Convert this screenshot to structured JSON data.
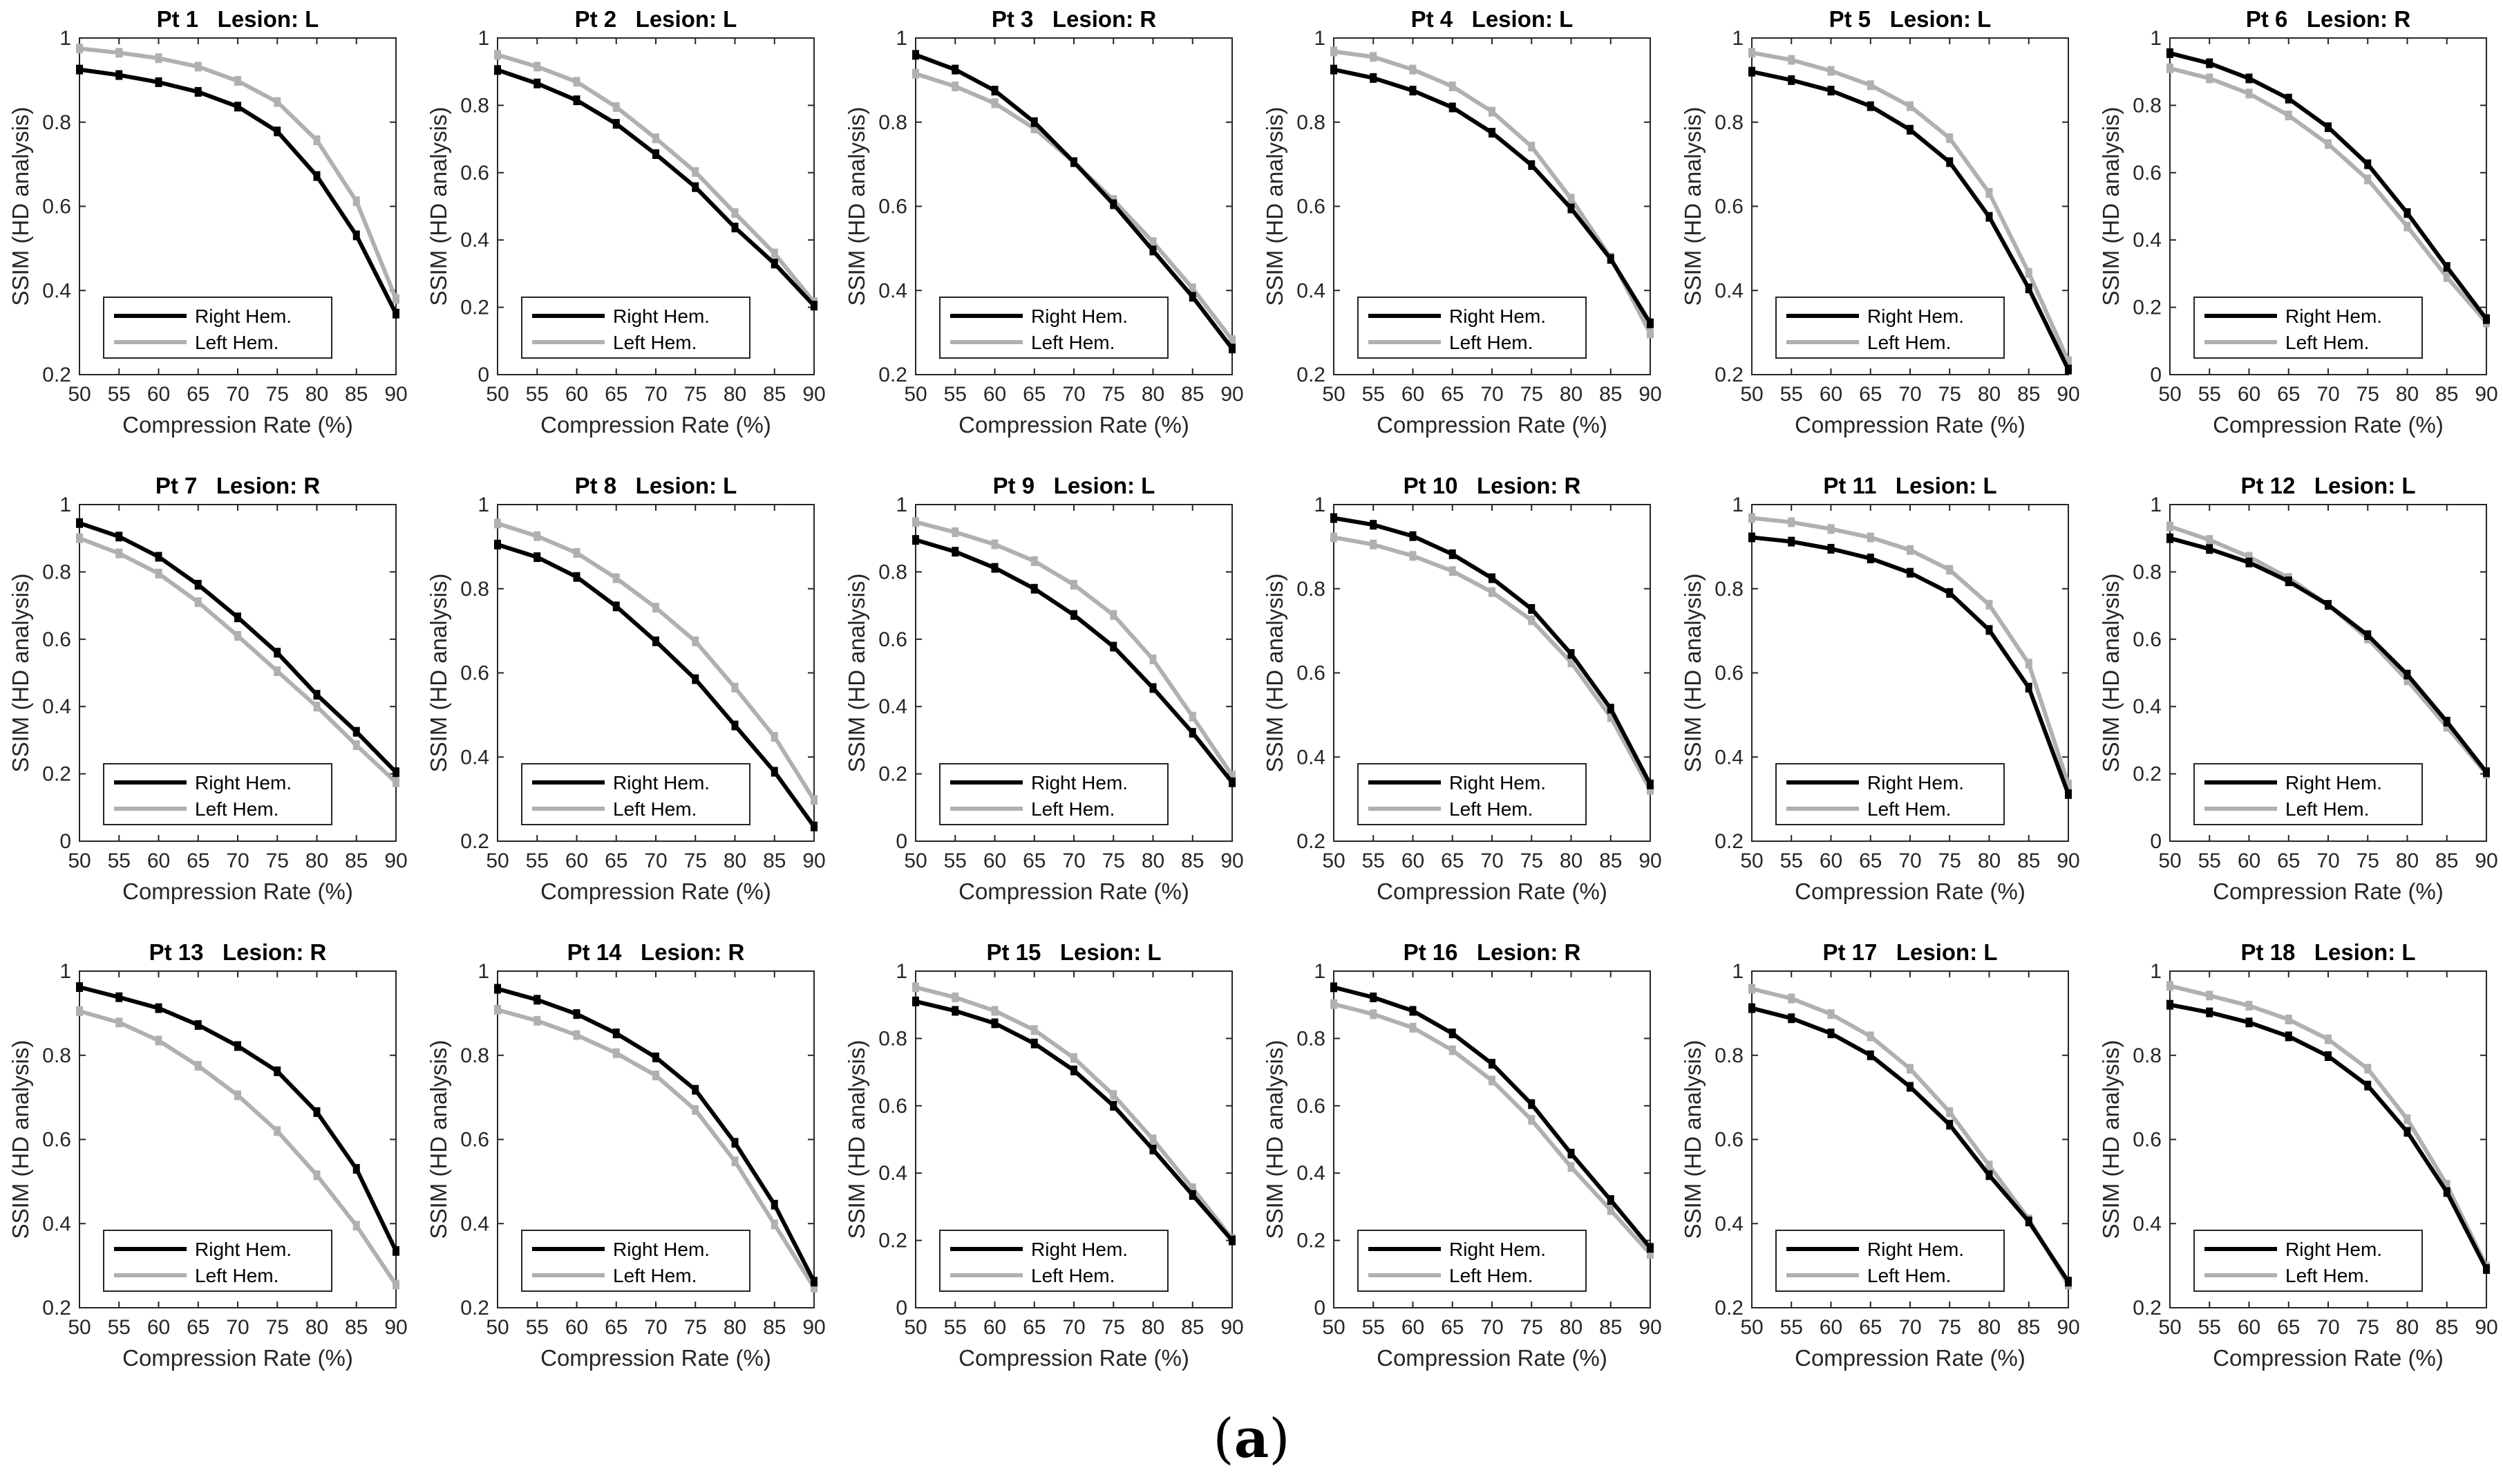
{
  "figure": {
    "caption_open": "(",
    "caption_letter": "a",
    "caption_close": ")"
  },
  "shared": {
    "xlabel": "Compression Rate (%)",
    "ylabel": "SSIM (HD analysis)",
    "xticks": [
      50,
      55,
      60,
      65,
      70,
      75,
      80,
      85,
      90
    ],
    "legend": [
      "Right Hem.",
      "Left Hem."
    ],
    "colors": {
      "right": "#000000",
      "left": "#b0b0b0"
    },
    "title_lesion_word": "Lesion:"
  },
  "chart_data": [
    {
      "type": "line",
      "title": "Pt 1   Lesion: L",
      "patient": "Pt 1",
      "lesion": "L",
      "ylim": [
        0.2,
        1
      ],
      "yticks": [
        0.2,
        0.4,
        0.6,
        0.8,
        1
      ],
      "x": [
        50,
        55,
        60,
        65,
        70,
        75,
        80,
        85,
        90
      ],
      "series": [
        {
          "name": "Right Hem.",
          "values": [
            0.925,
            0.912,
            0.895,
            0.872,
            0.837,
            0.778,
            0.672,
            0.531,
            0.345
          ]
        },
        {
          "name": "Left Hem.",
          "values": [
            0.975,
            0.965,
            0.952,
            0.932,
            0.898,
            0.848,
            0.757,
            0.612,
            0.38
          ]
        }
      ]
    },
    {
      "type": "line",
      "title": "Pt 2   Lesion: L",
      "patient": "Pt 2",
      "lesion": "L",
      "ylim": [
        0,
        1
      ],
      "yticks": [
        0,
        0.2,
        0.4,
        0.6,
        0.8,
        1
      ],
      "x": [
        50,
        55,
        60,
        65,
        70,
        75,
        80,
        85,
        90
      ],
      "series": [
        {
          "name": "Right Hem.",
          "values": [
            0.905,
            0.865,
            0.815,
            0.745,
            0.655,
            0.557,
            0.437,
            0.33,
            0.205
          ]
        },
        {
          "name": "Left Hem.",
          "values": [
            0.95,
            0.915,
            0.87,
            0.795,
            0.702,
            0.602,
            0.48,
            0.36,
            0.215
          ]
        }
      ]
    },
    {
      "type": "line",
      "title": "Pt 3   Lesion: R",
      "patient": "Pt 3",
      "lesion": "R",
      "ylim": [
        0.2,
        1
      ],
      "yticks": [
        0.2,
        0.4,
        0.6,
        0.8,
        1
      ],
      "x": [
        50,
        55,
        60,
        65,
        70,
        75,
        80,
        85,
        90
      ],
      "series": [
        {
          "name": "Right Hem.",
          "values": [
            0.96,
            0.925,
            0.875,
            0.8,
            0.705,
            0.605,
            0.495,
            0.385,
            0.262
          ]
        },
        {
          "name": "Left Hem.",
          "values": [
            0.915,
            0.885,
            0.845,
            0.785,
            0.705,
            0.615,
            0.515,
            0.405,
            0.282
          ]
        }
      ]
    },
    {
      "type": "line",
      "title": "Pt 4   Lesion: L",
      "patient": "Pt 4",
      "lesion": "L",
      "ylim": [
        0.2,
        1
      ],
      "yticks": [
        0.2,
        0.4,
        0.6,
        0.8,
        1
      ],
      "x": [
        50,
        55,
        60,
        65,
        70,
        75,
        80,
        85,
        90
      ],
      "series": [
        {
          "name": "Right Hem.",
          "values": [
            0.925,
            0.905,
            0.875,
            0.835,
            0.775,
            0.698,
            0.595,
            0.475,
            0.322
          ]
        },
        {
          "name": "Left Hem.",
          "values": [
            0.968,
            0.955,
            0.925,
            0.885,
            0.825,
            0.742,
            0.618,
            0.478,
            0.298
          ]
        }
      ]
    },
    {
      "type": "line",
      "title": "Pt 5   Lesion: L",
      "patient": "Pt 5",
      "lesion": "L",
      "ylim": [
        0.2,
        1
      ],
      "yticks": [
        0.2,
        0.4,
        0.6,
        0.8,
        1
      ],
      "x": [
        50,
        55,
        60,
        65,
        70,
        75,
        80,
        85,
        90
      ],
      "series": [
        {
          "name": "Right Hem.",
          "values": [
            0.92,
            0.9,
            0.875,
            0.838,
            0.782,
            0.705,
            0.575,
            0.405,
            0.212
          ]
        },
        {
          "name": "Left Hem.",
          "values": [
            0.965,
            0.948,
            0.922,
            0.888,
            0.838,
            0.762,
            0.632,
            0.442,
            0.232
          ]
        }
      ]
    },
    {
      "type": "line",
      "title": "Pt 6   Lesion: R",
      "patient": "Pt 6",
      "lesion": "R",
      "ylim": [
        0,
        1
      ],
      "yticks": [
        0,
        0.2,
        0.4,
        0.6,
        0.8,
        1
      ],
      "x": [
        50,
        55,
        60,
        65,
        70,
        75,
        80,
        85,
        90
      ],
      "series": [
        {
          "name": "Right Hem.",
          "values": [
            0.955,
            0.925,
            0.88,
            0.82,
            0.735,
            0.625,
            0.48,
            0.32,
            0.165
          ]
        },
        {
          "name": "Left Hem.",
          "values": [
            0.91,
            0.88,
            0.835,
            0.77,
            0.685,
            0.58,
            0.44,
            0.29,
            0.155
          ]
        }
      ]
    },
    {
      "type": "line",
      "title": "Pt 7   Lesion: R",
      "patient": "Pt 7",
      "lesion": "R",
      "ylim": [
        0,
        1
      ],
      "yticks": [
        0,
        0.2,
        0.4,
        0.6,
        0.8,
        1
      ],
      "x": [
        50,
        55,
        60,
        65,
        70,
        75,
        80,
        85,
        90
      ],
      "series": [
        {
          "name": "Right Hem.",
          "values": [
            0.945,
            0.905,
            0.845,
            0.762,
            0.665,
            0.56,
            0.435,
            0.325,
            0.205
          ]
        },
        {
          "name": "Left Hem.",
          "values": [
            0.9,
            0.855,
            0.795,
            0.71,
            0.61,
            0.505,
            0.4,
            0.285,
            0.175
          ]
        }
      ]
    },
    {
      "type": "line",
      "title": "Pt 8   Lesion: L",
      "patient": "Pt 8",
      "lesion": "L",
      "ylim": [
        0.2,
        1
      ],
      "yticks": [
        0.2,
        0.4,
        0.6,
        0.8,
        1
      ],
      "x": [
        50,
        55,
        60,
        65,
        70,
        75,
        80,
        85,
        90
      ],
      "series": [
        {
          "name": "Right Hem.",
          "values": [
            0.905,
            0.875,
            0.828,
            0.758,
            0.675,
            0.585,
            0.475,
            0.365,
            0.235
          ]
        },
        {
          "name": "Left Hem.",
          "values": [
            0.955,
            0.925,
            0.885,
            0.825,
            0.755,
            0.675,
            0.565,
            0.448,
            0.298
          ]
        }
      ]
    },
    {
      "type": "line",
      "title": "Pt 9   Lesion: L",
      "patient": "Pt 9",
      "lesion": "L",
      "ylim": [
        0,
        1
      ],
      "yticks": [
        0,
        0.2,
        0.4,
        0.6,
        0.8,
        1
      ],
      "x": [
        50,
        55,
        60,
        65,
        70,
        75,
        80,
        85,
        90
      ],
      "series": [
        {
          "name": "Right Hem.",
          "values": [
            0.895,
            0.86,
            0.812,
            0.75,
            0.672,
            0.578,
            0.455,
            0.322,
            0.175
          ]
        },
        {
          "name": "Left Hem.",
          "values": [
            0.948,
            0.918,
            0.882,
            0.832,
            0.762,
            0.672,
            0.54,
            0.37,
            0.195
          ]
        }
      ]
    },
    {
      "type": "line",
      "title": "Pt 10   Lesion: R",
      "patient": "Pt 10",
      "lesion": "R",
      "ylim": [
        0.2,
        1
      ],
      "yticks": [
        0.2,
        0.4,
        0.6,
        0.8,
        1
      ],
      "x": [
        50,
        55,
        60,
        65,
        70,
        75,
        80,
        85,
        90
      ],
      "series": [
        {
          "name": "Right Hem.",
          "values": [
            0.968,
            0.952,
            0.925,
            0.882,
            0.825,
            0.752,
            0.645,
            0.515,
            0.335
          ]
        },
        {
          "name": "Left Hem.",
          "values": [
            0.922,
            0.905,
            0.878,
            0.842,
            0.792,
            0.725,
            0.625,
            0.495,
            0.322
          ]
        }
      ]
    },
    {
      "type": "line",
      "title": "Pt 11   Lesion: L",
      "patient": "Pt 11",
      "lesion": "L",
      "ylim": [
        0.2,
        1
      ],
      "yticks": [
        0.2,
        0.4,
        0.6,
        0.8,
        1
      ],
      "x": [
        50,
        55,
        60,
        65,
        70,
        75,
        80,
        85,
        90
      ],
      "series": [
        {
          "name": "Right Hem.",
          "values": [
            0.922,
            0.912,
            0.895,
            0.872,
            0.838,
            0.79,
            0.702,
            0.565,
            0.312
          ]
        },
        {
          "name": "Left Hem.",
          "values": [
            0.968,
            0.958,
            0.942,
            0.922,
            0.892,
            0.845,
            0.762,
            0.622,
            0.335
          ]
        }
      ]
    },
    {
      "type": "line",
      "title": "Pt 12   Lesion: L",
      "patient": "Pt 12",
      "lesion": "L",
      "ylim": [
        0,
        1
      ],
      "yticks": [
        0,
        0.2,
        0.4,
        0.6,
        0.8,
        1
      ],
      "x": [
        50,
        55,
        60,
        65,
        70,
        75,
        80,
        85,
        90
      ],
      "series": [
        {
          "name": "Right Hem.",
          "values": [
            0.9,
            0.868,
            0.828,
            0.772,
            0.702,
            0.612,
            0.495,
            0.355,
            0.205
          ]
        },
        {
          "name": "Left Hem.",
          "values": [
            0.935,
            0.895,
            0.845,
            0.782,
            0.702,
            0.602,
            0.478,
            0.34,
            0.2
          ]
        }
      ]
    },
    {
      "type": "line",
      "title": "Pt 13   Lesion: R",
      "patient": "Pt 13",
      "lesion": "R",
      "ylim": [
        0.2,
        1
      ],
      "yticks": [
        0.2,
        0.4,
        0.6,
        0.8,
        1
      ],
      "x": [
        50,
        55,
        60,
        65,
        70,
        75,
        80,
        85,
        90
      ],
      "series": [
        {
          "name": "Right Hem.",
          "values": [
            0.962,
            0.938,
            0.912,
            0.872,
            0.822,
            0.762,
            0.665,
            0.53,
            0.335
          ]
        },
        {
          "name": "Left Hem.",
          "values": [
            0.905,
            0.878,
            0.835,
            0.775,
            0.705,
            0.62,
            0.515,
            0.395,
            0.255
          ]
        }
      ]
    },
    {
      "type": "line",
      "title": "Pt 14   Lesion: R",
      "patient": "Pt 14",
      "lesion": "R",
      "ylim": [
        0.2,
        1
      ],
      "yticks": [
        0.2,
        0.4,
        0.6,
        0.8,
        1
      ],
      "x": [
        50,
        55,
        60,
        65,
        70,
        75,
        80,
        85,
        90
      ],
      "series": [
        {
          "name": "Right Hem.",
          "values": [
            0.958,
            0.932,
            0.898,
            0.852,
            0.795,
            0.718,
            0.592,
            0.445,
            0.262
          ]
        },
        {
          "name": "Left Hem.",
          "values": [
            0.908,
            0.882,
            0.848,
            0.805,
            0.752,
            0.67,
            0.548,
            0.398,
            0.248
          ]
        }
      ]
    },
    {
      "type": "line",
      "title": "Pt 15   Lesion: L",
      "patient": "Pt 15",
      "lesion": "L",
      "ylim": [
        0,
        1
      ],
      "yticks": [
        0,
        0.2,
        0.4,
        0.6,
        0.8,
        1
      ],
      "x": [
        50,
        55,
        60,
        65,
        70,
        75,
        80,
        85,
        90
      ],
      "series": [
        {
          "name": "Right Hem.",
          "values": [
            0.91,
            0.882,
            0.845,
            0.785,
            0.705,
            0.6,
            0.47,
            0.335,
            0.2
          ]
        },
        {
          "name": "Left Hem.",
          "values": [
            0.952,
            0.922,
            0.882,
            0.825,
            0.742,
            0.632,
            0.5,
            0.355,
            0.205
          ]
        }
      ]
    },
    {
      "type": "line",
      "title": "Pt 16   Lesion: R",
      "patient": "Pt 16",
      "lesion": "R",
      "ylim": [
        0,
        1
      ],
      "yticks": [
        0,
        0.2,
        0.4,
        0.6,
        0.8,
        1
      ],
      "x": [
        50,
        55,
        60,
        65,
        70,
        75,
        80,
        85,
        90
      ],
      "series": [
        {
          "name": "Right Hem.",
          "values": [
            0.952,
            0.922,
            0.882,
            0.815,
            0.725,
            0.605,
            0.458,
            0.32,
            0.178
          ]
        },
        {
          "name": "Left Hem.",
          "values": [
            0.902,
            0.872,
            0.832,
            0.765,
            0.675,
            0.558,
            0.418,
            0.29,
            0.16
          ]
        }
      ]
    },
    {
      "type": "line",
      "title": "Pt 17   Lesion: L",
      "patient": "Pt 17",
      "lesion": "L",
      "ylim": [
        0.2,
        1
      ],
      "yticks": [
        0.2,
        0.4,
        0.6,
        0.8,
        1
      ],
      "x": [
        50,
        55,
        60,
        65,
        70,
        75,
        80,
        85,
        90
      ],
      "series": [
        {
          "name": "Right Hem.",
          "values": [
            0.912,
            0.888,
            0.852,
            0.8,
            0.725,
            0.635,
            0.515,
            0.405,
            0.262
          ]
        },
        {
          "name": "Left Hem.",
          "values": [
            0.958,
            0.935,
            0.898,
            0.845,
            0.768,
            0.665,
            0.538,
            0.41,
            0.255
          ]
        }
      ]
    },
    {
      "type": "line",
      "title": "Pt 18   Lesion: L",
      "patient": "Pt 18",
      "lesion": "L",
      "ylim": [
        0.2,
        1
      ],
      "yticks": [
        0.2,
        0.4,
        0.6,
        0.8,
        1
      ],
      "x": [
        50,
        55,
        60,
        65,
        70,
        75,
        80,
        85,
        90
      ],
      "series": [
        {
          "name": "Right Hem.",
          "values": [
            0.92,
            0.902,
            0.878,
            0.845,
            0.798,
            0.728,
            0.618,
            0.475,
            0.292
          ]
        },
        {
          "name": "Left Hem.",
          "values": [
            0.965,
            0.942,
            0.918,
            0.885,
            0.838,
            0.768,
            0.648,
            0.492,
            0.298
          ]
        }
      ]
    }
  ]
}
